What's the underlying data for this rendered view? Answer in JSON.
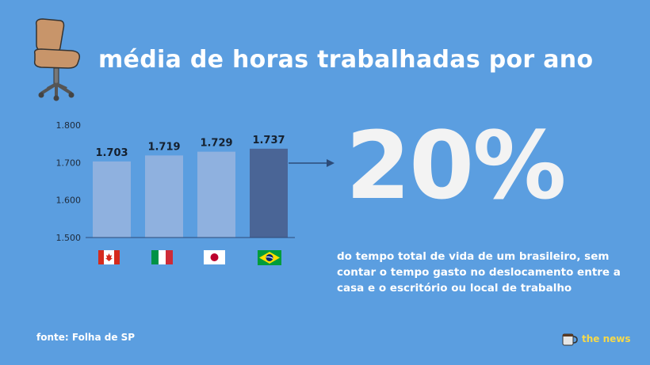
{
  "title": "média de horas trabalhadas por ano",
  "highlight": {
    "value": "20%",
    "description": "do tempo total de vida de um brasileiro, sem contar o tempo gasto no deslocamento entre a casa e o escritório ou local de trabalho"
  },
  "source": "fonte: Folha de SP",
  "brand": "the news",
  "chart_data": {
    "type": "bar",
    "categories": [
      "canada-flag",
      "italy-flag",
      "japan-flag",
      "brazil-flag"
    ],
    "values": [
      1703,
      1719,
      1729,
      1737
    ],
    "value_labels": [
      "1.703",
      "1.719",
      "1.729",
      "1.737"
    ],
    "ylim": [
      1500,
      1800
    ],
    "yticks": [
      1500,
      1600,
      1700,
      1800
    ],
    "ytick_labels": [
      "1.500",
      "1.600",
      "1.700",
      "1.800"
    ],
    "grid": false,
    "colors": {
      "bar": "#8fb1df",
      "highlight_bar": "#4a6596",
      "axis": "#2d4b78"
    },
    "highlight_index": 3
  }
}
